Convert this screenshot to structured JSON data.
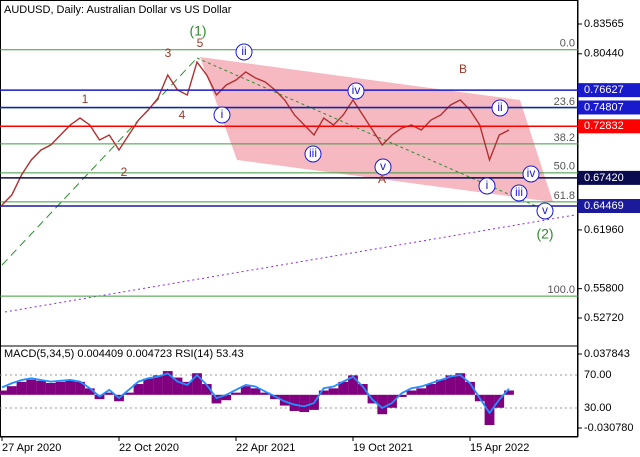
{
  "chart_data": [
    {
      "type": "line",
      "title": "AUDUSD, Daily:  Australian Dollar vs US Dollar",
      "categories": [
        "27 Apr 2020",
        null,
        null,
        null,
        null,
        null,
        null,
        null,
        null,
        null,
        null,
        null,
        "22 Oct 2020",
        null,
        null,
        null,
        null,
        null,
        null,
        null,
        null,
        null,
        null,
        null,
        "22 Apr 2021",
        null,
        null,
        null,
        null,
        null,
        null,
        null,
        null,
        null,
        null,
        null,
        "19 Oct 2021",
        null,
        null,
        null,
        null,
        null,
        null,
        null,
        null,
        null,
        null,
        null,
        "15 Apr 2022",
        null,
        null,
        null,
        null
      ],
      "series": [
        {
          "color": "#b03030",
          "values": [
            0.6457,
            0.6562,
            0.6772,
            0.693,
            0.7035,
            0.7087,
            0.7192,
            0.7297,
            0.737,
            0.7297,
            0.714,
            0.7192,
            0.7035,
            0.7192,
            0.7349,
            0.7454,
            0.758,
            0.7821,
            0.7664,
            0.7612,
            0.7958,
            0.7821,
            0.7612,
            0.7717,
            0.7769,
            0.7853,
            0.779,
            0.7748,
            0.7664,
            0.7559,
            0.7402,
            0.7297,
            0.7192,
            0.737,
            0.7297,
            0.7402,
            0.7559,
            0.7402,
            0.7244,
            0.7087,
            0.7192,
            0.7265,
            0.7297,
            0.7244,
            0.7349,
            0.7402,
            0.7507,
            0.7559,
            0.7454,
            0.7297,
            0.693,
            0.7192,
            0.7244
          ]
        }
      ],
      "ylim": [
        0.49887,
        0.85558
      ],
      "yticks": [
        {
          "value": 0.83565,
          "label": "0.83565"
        },
        {
          "value": 0.8044,
          "label": "0.80440"
        },
        {
          "value": 0.6196,
          "label": "0.61960"
        },
        {
          "value": 0.558,
          "label": "0.55800"
        },
        {
          "value": 0.5272,
          "label": "0.52720"
        }
      ],
      "levels": [
        {
          "value": 0.76627,
          "label": "0.76627",
          "color": "#1a1acd"
        },
        {
          "value": 0.74807,
          "label": "0.74807",
          "color": "#1a1acd"
        },
        {
          "value": 0.72832,
          "label": "0.72832",
          "color": "#ff0000"
        },
        {
          "value": 0.6742,
          "label": "0.67420",
          "color": "#0a0a50"
        },
        {
          "value": 0.64469,
          "label": "0.64469",
          "color": "#1a1a9b"
        }
      ],
      "fib_color": "#3c9a3c",
      "fib_levels": [
        {
          "label": "0.0",
          "value": 0.8086
        },
        {
          "label": "23.6",
          "value": 0.7476
        },
        {
          "label": "38.2",
          "value": 0.7099
        },
        {
          "label": "50.0",
          "value": 0.6795
        },
        {
          "label": "61.8",
          "value": 0.649
        },
        {
          "label": "100.0",
          "value": 0.5502
        }
      ],
      "annotations": [
        "(1)",
        "5",
        "3",
        "1",
        "4",
        "2",
        "ii",
        "i",
        "iv",
        "iii",
        "v",
        "A",
        "B",
        "ii",
        "i",
        "iv",
        "iii",
        "v",
        "(2)"
      ]
    },
    {
      "type": "bar",
      "title": "MACD(5,34,5) 0.004409 0.004723 RSI(14) 53.43",
      "series": [
        {
          "color": "#800080",
          "values": [
            0.004,
            0.008,
            0.012,
            0.014,
            0.013,
            0.011,
            0.012,
            0.013,
            0.012,
            0.006,
            -0.004,
            0.002,
            -0.006,
            0.002,
            0.01,
            0.015,
            0.018,
            0.022,
            0.016,
            0.012,
            0.02,
            0.01,
            -0.008,
            -0.005,
            0.002,
            0.008,
            0.006,
            0.002,
            -0.004,
            -0.01,
            -0.015,
            -0.016,
            -0.014,
            0.004,
            0.006,
            0.012,
            0.018,
            0.01,
            -0.008,
            -0.018,
            -0.012,
            -0.002,
            0.004,
            0.006,
            0.01,
            0.014,
            0.018,
            0.02,
            0.012,
            -0.006,
            -0.028,
            -0.012,
            0.004
          ]
        },
        {
          "type": "line",
          "axis": "y2",
          "color": "#1e90ff",
          "values": [
            55,
            60,
            64,
            66,
            64,
            62,
            63,
            64,
            62,
            54,
            44,
            52,
            42,
            52,
            62,
            66,
            68,
            72,
            62,
            58,
            70,
            58,
            42,
            46,
            52,
            58,
            56,
            50,
            44,
            38,
            34,
            32,
            36,
            54,
            56,
            62,
            68,
            56,
            40,
            30,
            36,
            48,
            54,
            56,
            60,
            64,
            68,
            70,
            60,
            42,
            24,
            40,
            53.43
          ]
        }
      ],
      "ylim": [
        -0.03913,
        0.04526
      ],
      "yticks": [
        0.037843,
        {
          "value": -0.03078,
          "label": "-0.030780"
        }
      ],
      "y2lim": [
        -5.2,
        105.2
      ],
      "y2ticks": [
        {
          "value": 70,
          "label": "70.00"
        },
        {
          "value": 30,
          "label": "30.00"
        }
      ]
    }
  ]
}
